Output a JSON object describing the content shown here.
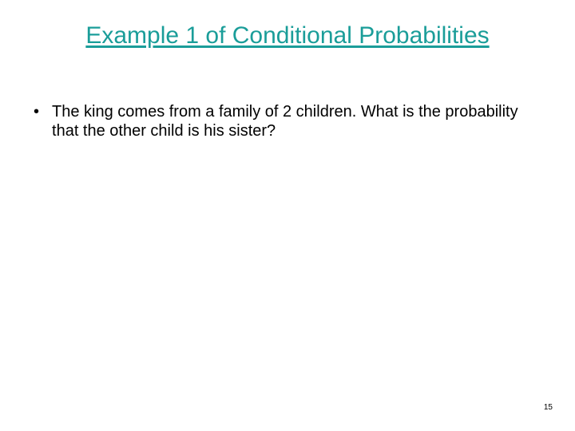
{
  "title": {
    "text": "Example 1 of Conditional Probabilities",
    "color": "#1a9d99",
    "fontsize": 30
  },
  "bullets": {
    "items": [
      {
        "text": "The king comes from a family of 2 children.  What is the probability that the other child is his sister?"
      }
    ],
    "color": "#000000",
    "fontsize": 20
  },
  "page_number": {
    "text": "15",
    "color": "#000000",
    "fontsize": 10
  },
  "background_color": "#ffffff"
}
